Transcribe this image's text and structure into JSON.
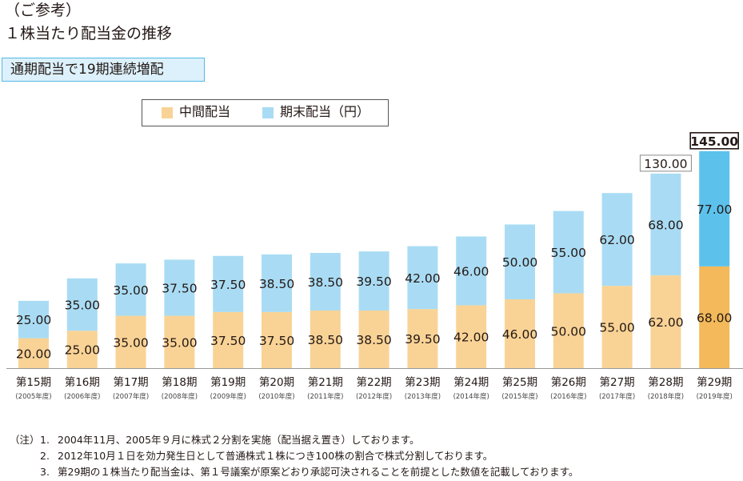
{
  "heading": {
    "line1": "（ご参考）",
    "line2": "１株当たり配当金の推移"
  },
  "callout": "通期配当で19期連続増配",
  "colors": {
    "interim": "#f9d396",
    "yearend": "#a9dcf4",
    "interim_highlight": "#f3b95a",
    "yearend_highlight": "#5cc2ec",
    "axis": "#999999"
  },
  "chart_data": {
    "type": "bar",
    "stacked": true,
    "categories": [
      "第15期",
      "第16期",
      "第17期",
      "第18期",
      "第19期",
      "第20期",
      "第21期",
      "第22期",
      "第23期",
      "第24期",
      "第25期",
      "第26期",
      "第27期",
      "第28期",
      "第29期"
    ],
    "sub_categories": [
      "(2005年度)",
      "(2006年度)",
      "(2007年度)",
      "(2008年度)",
      "(2009年度)",
      "(2010年度)",
      "(2011年度)",
      "(2012年度)",
      "(2013年度)",
      "(2014年度)",
      "(2015年度)",
      "(2016年度)",
      "(2017年度)",
      "(2018年度)",
      "(2019年度)"
    ],
    "series": [
      {
        "name": "中間配当",
        "values": [
          20.0,
          25.0,
          35.0,
          35.0,
          37.5,
          37.5,
          38.5,
          38.5,
          39.5,
          42.0,
          46.0,
          50.0,
          55.0,
          62.0,
          68.0
        ],
        "labels": [
          "20.00",
          "25.00",
          "35.00",
          "35.00",
          "37.50",
          "37.50",
          "38.50",
          "38.50",
          "39.50",
          "42.00",
          "46.00",
          "50.00",
          "55.00",
          "62.00",
          "68.00"
        ]
      },
      {
        "name": "期末配当",
        "values": [
          25.0,
          35.0,
          35.0,
          37.5,
          37.5,
          38.5,
          38.5,
          39.5,
          42.0,
          46.0,
          50.0,
          55.0,
          62.0,
          68.0,
          77.0
        ],
        "labels": [
          "25.00",
          "35.00",
          "35.00",
          "37.50",
          "37.50",
          "38.50",
          "38.50",
          "39.50",
          "42.00",
          "46.00",
          "50.00",
          "55.00",
          "62.00",
          "68.00",
          "77.00"
        ]
      }
    ],
    "totals": [
      {
        "index": 13,
        "label": "130.00"
      },
      {
        "index": 14,
        "label": "145.00"
      }
    ],
    "legend": {
      "interim": "中間配当",
      "yearend": "期末配当（円）"
    },
    "ylim": [
      0,
      150
    ],
    "grid": false
  },
  "notes": {
    "prefix": "（注）",
    "items": [
      {
        "num": "1.",
        "text": "2004年11月、2005年９月に株式２分割を実施（配当据え置き）しております。"
      },
      {
        "num": "2.",
        "text": "2012年10月１日を効力発生日として普通株式１株につき100株の割合で株式分割しております。"
      },
      {
        "num": "3.",
        "text": "第29期の１株当たり配当金は、第１号議案が原案どおり承認可決されることを前提とした数値を記載しております。"
      }
    ]
  }
}
